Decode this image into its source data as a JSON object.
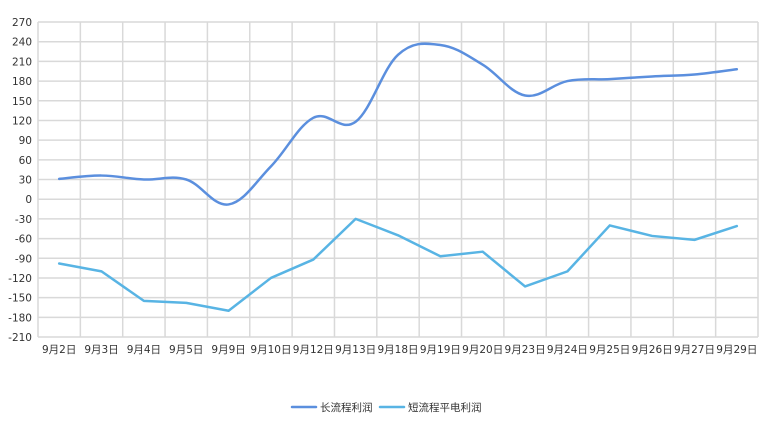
{
  "chart_data": {
    "type": "line",
    "title": "",
    "xlabel": "",
    "ylabel": "",
    "categories": [
      "9月2日",
      "9月3日",
      "9月4日",
      "9月5日",
      "9月9日",
      "9月10日",
      "9月12日",
      "9月13日",
      "9月18日",
      "9月19日",
      "9月20日",
      "9月23日",
      "9月24日",
      "9月25日",
      "9月26日",
      "9月27日",
      "9月29日"
    ],
    "ylim": [
      -210,
      270
    ],
    "yticks": [
      270,
      240,
      210,
      180,
      150,
      120,
      90,
      60,
      30,
      0,
      -30,
      -60,
      -90,
      -120,
      -150,
      -180,
      -210
    ],
    "grid": true,
    "legend_position": "bottom",
    "series": [
      {
        "name": "长流程利润",
        "color": "#5b8fde",
        "smooth": true,
        "values": [
          31,
          36,
          30,
          30,
          -8,
          50,
          124,
          118,
          220,
          235,
          205,
          158,
          180,
          183,
          187,
          190,
          198
        ]
      },
      {
        "name": "短流程平电利润",
        "color": "#58b4e4",
        "smooth": false,
        "values": [
          -98,
          -110,
          -155,
          -158,
          -170,
          -120,
          -92,
          -30,
          -55,
          -87,
          -80,
          -133,
          -110,
          -40,
          -56,
          -62,
          -41
        ]
      }
    ]
  }
}
